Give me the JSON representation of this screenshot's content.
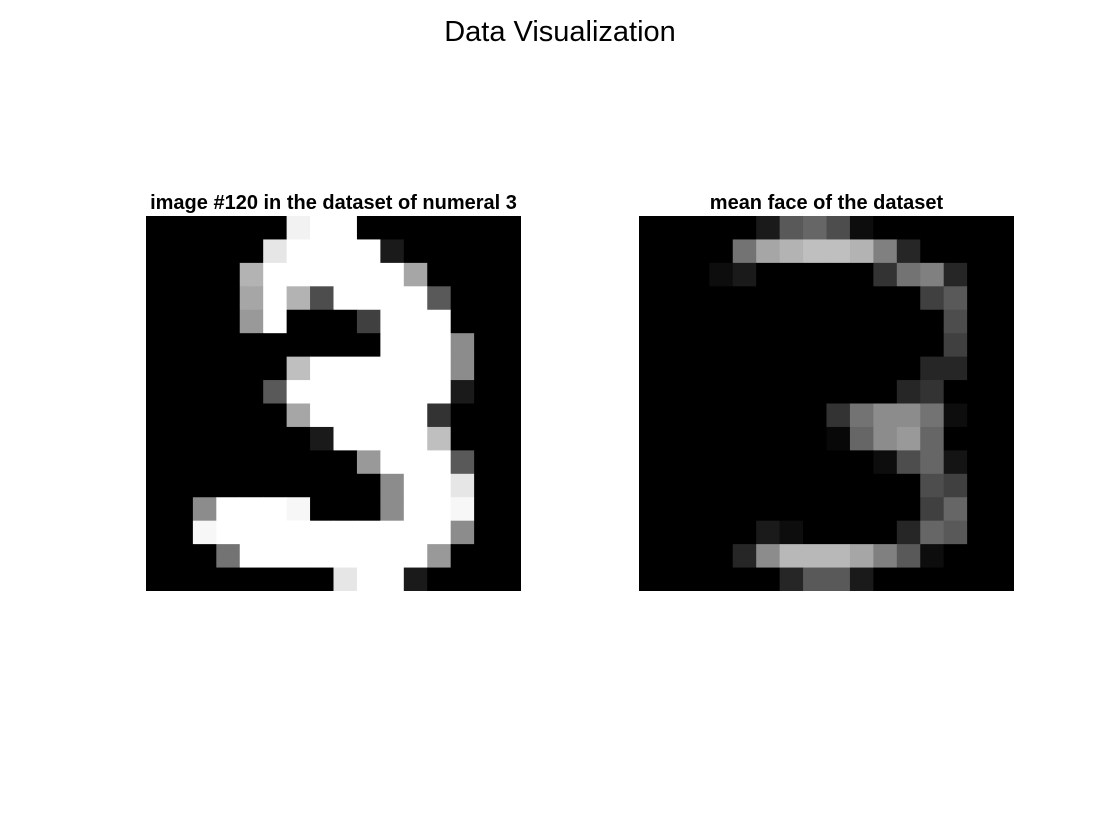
{
  "figure_title": "Data Visualization",
  "chart_data": [
    {
      "type": "heatmap",
      "title": "image #120 in the dataset of numeral 3",
      "colormap": "gray",
      "rows": 16,
      "cols": 16,
      "values": [
        [
          0,
          0,
          0,
          0,
          0,
          0,
          0.95,
          1,
          1,
          0,
          0,
          0,
          0,
          0,
          0,
          0
        ],
        [
          0,
          0,
          0,
          0,
          0,
          0.9,
          1,
          1,
          1,
          1,
          0.1,
          0,
          0,
          0,
          0,
          0
        ],
        [
          0,
          0,
          0,
          0,
          0.7,
          1,
          1,
          1,
          1,
          1,
          1,
          0.65,
          0,
          0,
          0,
          0
        ],
        [
          0,
          0,
          0,
          0,
          0.65,
          1,
          0.7,
          0.3,
          1,
          1,
          1,
          1,
          0.35,
          0,
          0,
          0
        ],
        [
          0,
          0,
          0,
          0,
          0.6,
          1,
          0,
          0,
          0,
          0.25,
          1,
          1,
          1,
          0,
          0,
          0
        ],
        [
          0,
          0,
          0,
          0,
          0,
          0,
          0,
          0,
          0,
          0,
          1,
          1,
          1,
          0.55,
          0,
          0
        ],
        [
          0,
          0,
          0,
          0,
          0,
          0,
          0.75,
          1,
          1,
          1,
          1,
          1,
          1,
          0.55,
          0,
          0
        ],
        [
          0,
          0,
          0,
          0,
          0,
          0.35,
          1,
          1,
          1,
          1,
          1,
          1,
          1,
          0.1,
          0,
          0
        ],
        [
          0,
          0,
          0,
          0,
          0,
          0,
          0.65,
          1,
          1,
          1,
          1,
          1,
          0.2,
          0,
          0,
          0
        ],
        [
          0,
          0,
          0,
          0,
          0,
          0,
          0,
          0.1,
          1,
          1,
          1,
          1,
          0.75,
          0,
          0,
          0
        ],
        [
          0,
          0,
          0,
          0,
          0,
          0,
          0,
          0,
          0,
          0.6,
          1,
          1,
          1,
          0.35,
          0,
          0
        ],
        [
          0,
          0,
          0,
          0,
          0,
          0,
          0,
          0,
          0,
          0,
          0.55,
          1,
          1,
          0.9,
          0,
          0
        ],
        [
          0,
          0,
          0.55,
          1,
          1,
          1,
          0.97,
          0,
          0,
          0,
          0.55,
          1,
          1,
          0.97,
          0,
          0
        ],
        [
          0,
          0,
          0.97,
          1,
          1,
          1,
          1,
          1,
          1,
          1,
          1,
          1,
          1,
          0.55,
          0,
          0
        ],
        [
          0,
          0,
          0,
          0.45,
          1,
          1,
          1,
          1,
          1,
          1,
          1,
          1,
          0.6,
          0,
          0,
          0
        ],
        [
          0,
          0,
          0,
          0,
          0,
          0,
          0,
          0,
          0.9,
          1,
          1,
          0.1,
          0,
          0,
          0,
          0
        ]
      ]
    },
    {
      "type": "heatmap",
      "title": "mean face of the dataset",
      "colormap": "gray",
      "rows": 16,
      "cols": 16,
      "values": [
        [
          0,
          0,
          0,
          0,
          0,
          0.1,
          0.35,
          0.4,
          0.3,
          0.05,
          0,
          0,
          0,
          0,
          0,
          0
        ],
        [
          0,
          0,
          0,
          0,
          0.45,
          0.65,
          0.7,
          0.75,
          0.75,
          0.7,
          0.5,
          0.15,
          0,
          0,
          0,
          0
        ],
        [
          0,
          0,
          0,
          0.05,
          0.1,
          0,
          0,
          0,
          0,
          0,
          0.2,
          0.45,
          0.5,
          0.15,
          0,
          0
        ],
        [
          0,
          0,
          0,
          0,
          0,
          0,
          0,
          0,
          0,
          0,
          0,
          0,
          0.25,
          0.35,
          0,
          0
        ],
        [
          0,
          0,
          0,
          0,
          0,
          0,
          0,
          0,
          0,
          0,
          0,
          0,
          0,
          0.3,
          0,
          0
        ],
        [
          0,
          0,
          0,
          0,
          0,
          0,
          0,
          0,
          0,
          0,
          0,
          0,
          0,
          0.25,
          0,
          0
        ],
        [
          0,
          0,
          0,
          0,
          0,
          0,
          0,
          0,
          0,
          0,
          0,
          0,
          0.15,
          0.15,
          0,
          0
        ],
        [
          0,
          0,
          0,
          0,
          0,
          0,
          0,
          0,
          0,
          0,
          0,
          0.15,
          0.2,
          0,
          0,
          0
        ],
        [
          0,
          0,
          0,
          0,
          0,
          0,
          0,
          0,
          0.2,
          0.45,
          0.55,
          0.55,
          0.45,
          0.05,
          0,
          0
        ],
        [
          0,
          0,
          0,
          0,
          0,
          0,
          0,
          0,
          0.03,
          0.4,
          0.55,
          0.6,
          0.4,
          0,
          0,
          0
        ],
        [
          0,
          0,
          0,
          0,
          0,
          0,
          0,
          0,
          0,
          0,
          0.05,
          0.3,
          0.4,
          0.08,
          0,
          0
        ],
        [
          0,
          0,
          0,
          0,
          0,
          0,
          0,
          0,
          0,
          0,
          0,
          0,
          0.3,
          0.25,
          0,
          0
        ],
        [
          0,
          0,
          0,
          0,
          0,
          0,
          0,
          0,
          0,
          0,
          0,
          0,
          0.25,
          0.4,
          0,
          0
        ],
        [
          0,
          0,
          0,
          0,
          0,
          0.1,
          0.05,
          0,
          0,
          0,
          0,
          0.15,
          0.4,
          0.35,
          0,
          0
        ],
        [
          0,
          0,
          0,
          0,
          0.15,
          0.55,
          0.72,
          0.72,
          0.72,
          0.65,
          0.5,
          0.35,
          0.05,
          0,
          0,
          0
        ],
        [
          0,
          0,
          0,
          0,
          0,
          0,
          0.15,
          0.35,
          0.35,
          0.1,
          0,
          0,
          0,
          0,
          0,
          0
        ]
      ]
    }
  ]
}
